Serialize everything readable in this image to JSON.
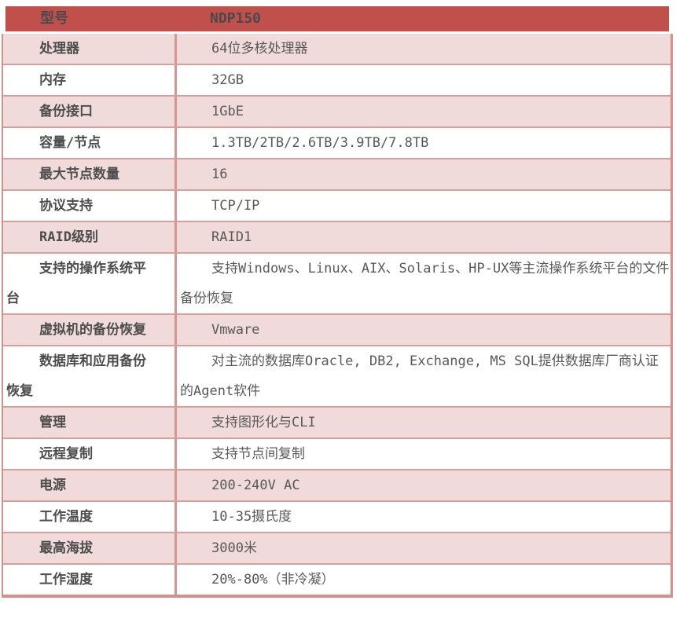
{
  "table": {
    "header": {
      "label": "型号",
      "value": "NDP150"
    },
    "rows": [
      {
        "label": "处理器",
        "value": "64位多核处理器"
      },
      {
        "label": "内存",
        "value": "32GB"
      },
      {
        "label": "备份接口",
        "value": "1GbE"
      },
      {
        "label": "容量/节点",
        "value": "1.3TB/2TB/2.6TB/3.9TB/7.8TB"
      },
      {
        "label": "最大节点数量",
        "value": "16"
      },
      {
        "label": "协议支持",
        "value": "TCP/IP"
      },
      {
        "label": "RAID级别",
        "value": "RAID1"
      },
      {
        "label": "支持的操作系统平台",
        "value": "支持Windows、Linux、AIX、Solaris、HP-UX等主流操作系统平台的文件备份恢复"
      },
      {
        "label": "虚拟机的备份恢复",
        "value": "Vmware"
      },
      {
        "label": "数据库和应用备份恢复",
        "value": "对主流的数据库Oracle, DB2, Exchange, MS SQL提供数据库厂商认证的Agent软件"
      },
      {
        "label": "管理",
        "value": "支持图形化与CLI"
      },
      {
        "label": "远程复制",
        "value": "支持节点间复制"
      },
      {
        "label": "电源",
        "value": "200-240V AC"
      },
      {
        "label": "工作温度",
        "value": "10-35摄氏度"
      },
      {
        "label": "最高海拔",
        "value": "3000米"
      },
      {
        "label": "工作湿度",
        "value": "20%-80%（非冷凝）"
      }
    ]
  },
  "colors": {
    "accent": "#C14F4C",
    "header-text": "#4A4A4A",
    "label-text": "#4D4D4D",
    "value-text": "#595959",
    "row-alt": "#F1DBDA",
    "inner-border": "#DB9E9C",
    "divider": "#D69492",
    "outer-border": "#D4908E"
  }
}
